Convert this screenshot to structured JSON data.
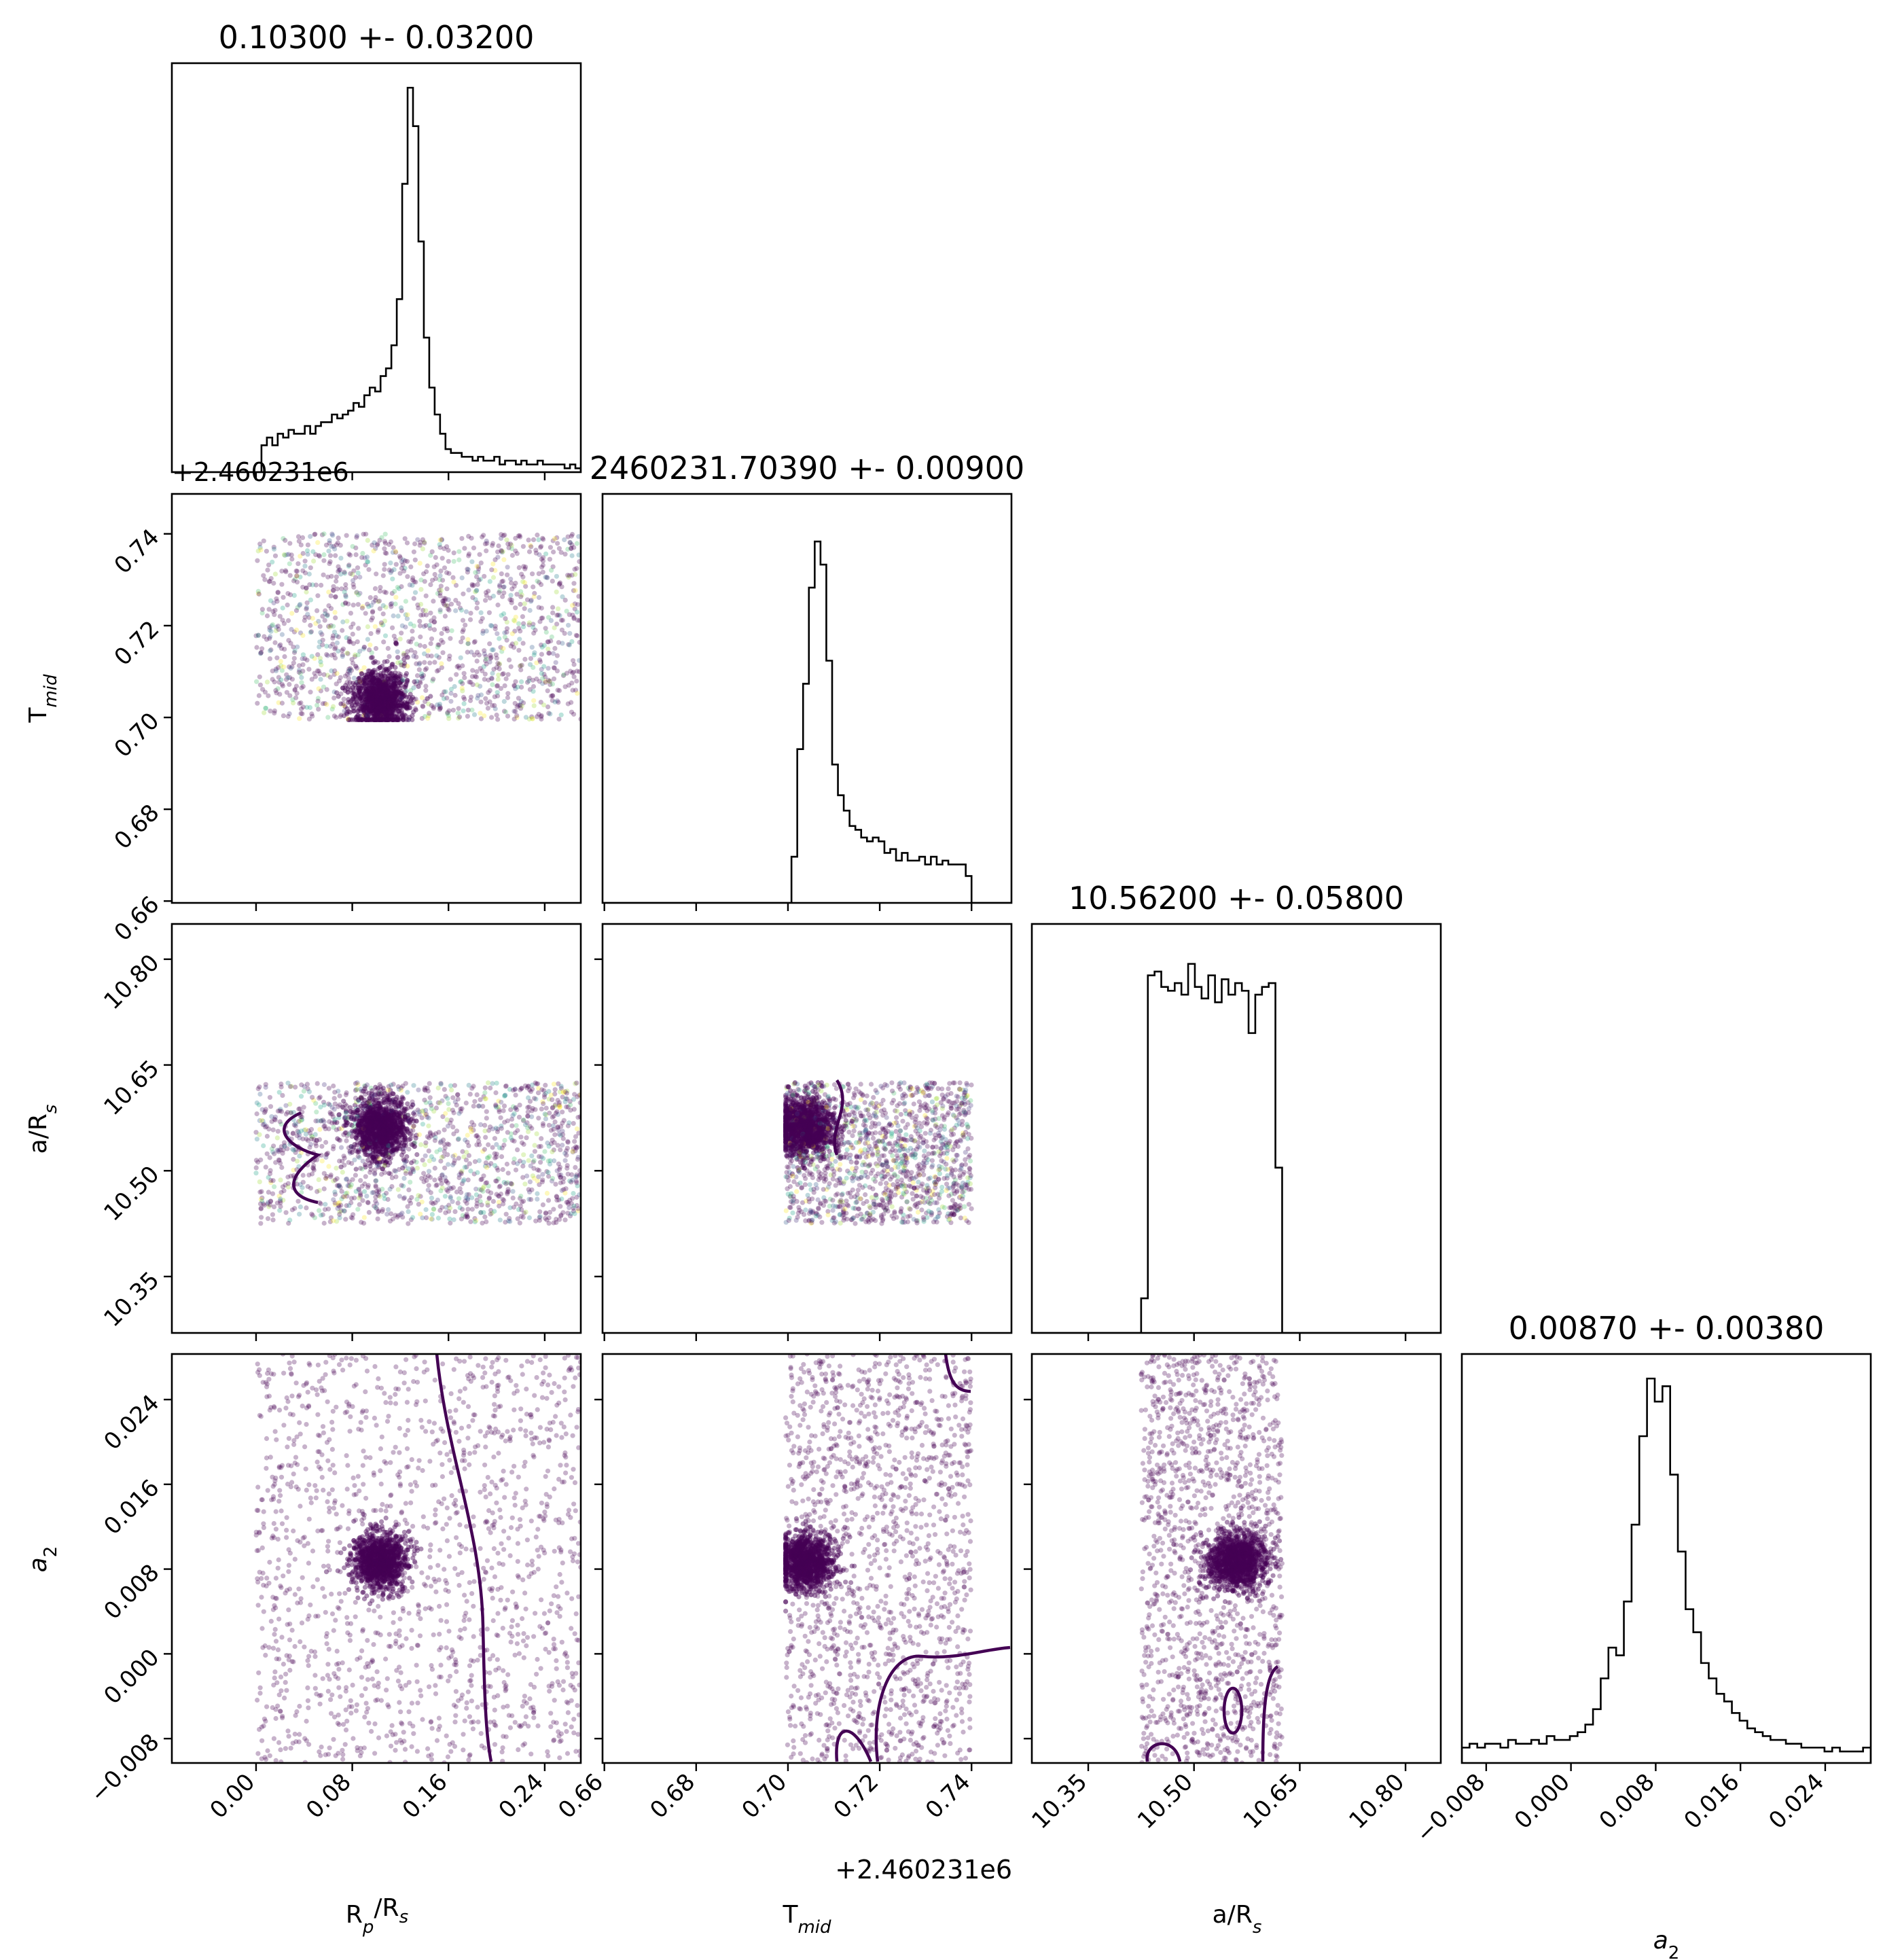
{
  "chart_data": {
    "type": "corner",
    "parameters": [
      {
        "id": "rp",
        "label": "R",
        "label_sub": "p",
        "label_mid": "/R",
        "label_sub2": "s",
        "range": [
          -0.07,
          0.27
        ],
        "ticks": [
          0.0,
          0.08,
          0.16,
          0.24
        ],
        "tick_labels": [
          "0.00",
          "0.08",
          "0.16",
          "0.24"
        ],
        "title": "0.10300 +- 0.03200",
        "median": 0.103,
        "sigma": 0.032,
        "sample_range": [
          0.0,
          0.27
        ],
        "hist_shape": "peaked with broad uniform wings",
        "hist_values": [
          0.0,
          0.07,
          0.09,
          0.07,
          0.1,
          0.09,
          0.11,
          0.1,
          0.1,
          0.12,
          0.1,
          0.12,
          0.13,
          0.13,
          0.15,
          0.14,
          0.15,
          0.16,
          0.18,
          0.17,
          0.2,
          0.22,
          0.21,
          0.25,
          0.27,
          0.33,
          0.45,
          0.75,
          1.0,
          0.9,
          0.6,
          0.35,
          0.22,
          0.15,
          0.1,
          0.06,
          0.05,
          0.05,
          0.04,
          0.04,
          0.03,
          0.04,
          0.03,
          0.03,
          0.04,
          0.02,
          0.03,
          0.03,
          0.02,
          0.03,
          0.02,
          0.02,
          0.03,
          0.02,
          0.02,
          0.02,
          0.02,
          0.01,
          0.02,
          0.01
        ]
      },
      {
        "id": "tmid",
        "label": "T",
        "label_sub": "mid",
        "range": [
          0.6596,
          0.7487
        ],
        "ticks": [
          0.66,
          0.68,
          0.7,
          0.72,
          0.74
        ],
        "tick_labels": [
          "0.66",
          "0.68",
          "0.70",
          "0.72",
          "0.74"
        ],
        "offset_text": "+2.460231e6",
        "title": "2460231.70390 +- 0.00900",
        "median": 0.7039,
        "sigma": 0.009,
        "sample_range": [
          0.6995,
          0.74
        ],
        "hist_values": [
          0.0,
          0.12,
          0.4,
          0.57,
          0.82,
          0.94,
          0.88,
          0.63,
          0.36,
          0.28,
          0.24,
          0.2,
          0.19,
          0.17,
          0.16,
          0.17,
          0.16,
          0.13,
          0.14,
          0.11,
          0.13,
          0.11,
          0.11,
          0.12,
          0.1,
          0.12,
          0.1,
          0.11,
          0.1,
          0.1,
          0.1,
          0.07
        ]
      },
      {
        "id": "ars",
        "label": "a/R",
        "label_sub": "s",
        "range": [
          10.27,
          10.85
        ],
        "ticks": [
          10.35,
          10.5,
          10.65,
          10.8
        ],
        "tick_labels": [
          "10.35",
          "10.50",
          "10.65",
          "10.80"
        ],
        "title": "10.56200 +- 0.05800",
        "median": 10.562,
        "sigma": 0.058,
        "sample_range": [
          10.425,
          10.625
        ],
        "hist_values": [
          0.09,
          0.93,
          0.94,
          0.9,
          0.89,
          0.91,
          0.88,
          0.96,
          0.9,
          0.87,
          0.93,
          0.86,
          0.92,
          0.88,
          0.91,
          0.89,
          0.78,
          0.88,
          0.9,
          0.91,
          0.43
        ]
      },
      {
        "id": "a2",
        "label": "a",
        "label_sub": "2",
        "range": [
          -0.0103,
          0.0283
        ],
        "ticks": [
          -0.008,
          0.0,
          0.008,
          0.016,
          0.024
        ],
        "tick_labels": [
          "−0.008",
          "0.000",
          "0.008",
          "0.016",
          "0.024"
        ],
        "title": "0.00870 +- 0.00380",
        "median": 0.0087,
        "sigma": 0.0038,
        "sample_range": [
          -0.0103,
          0.0283
        ],
        "hist_values": [
          0.04,
          0.05,
          0.04,
          0.05,
          0.05,
          0.04,
          0.06,
          0.05,
          0.05,
          0.06,
          0.05,
          0.07,
          0.06,
          0.06,
          0.07,
          0.08,
          0.1,
          0.14,
          0.22,
          0.3,
          0.28,
          0.42,
          0.62,
          0.85,
          1.0,
          0.94,
          0.98,
          0.75,
          0.55,
          0.4,
          0.34,
          0.26,
          0.22,
          0.18,
          0.16,
          0.13,
          0.11,
          0.09,
          0.08,
          0.07,
          0.06,
          0.06,
          0.05,
          0.05,
          0.04,
          0.04,
          0.04,
          0.03,
          0.04,
          0.03,
          0.03,
          0.03,
          0.04
        ]
      }
    ],
    "scatter_colormap": "viridis",
    "scatter_primary_color": "#440154",
    "contour_color": "#440154",
    "hist_color": "#000000",
    "grid": false,
    "legend": "none"
  }
}
